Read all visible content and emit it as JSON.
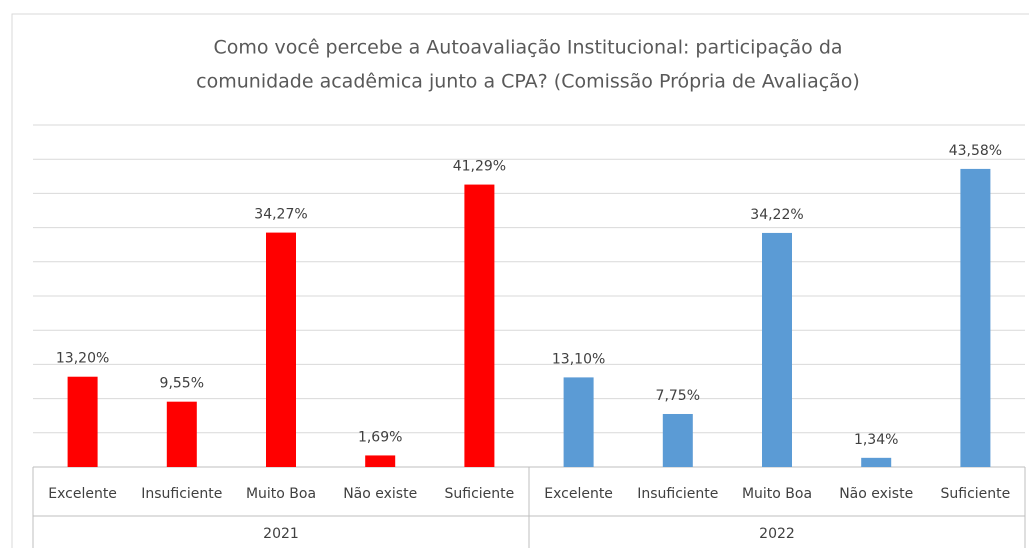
{
  "chart_data": {
    "type": "bar",
    "title": [
      "Como você percebe a Autoavaliação Institucional: participação da",
      "comunidade acadêmica junto a CPA? (Comissão Própria de Avaliação)"
    ],
    "groups": [
      {
        "label": "2021",
        "color": "#ff0000",
        "categories": [
          "Excelente",
          "Insuficiente",
          "Muito Boa",
          "Não existe",
          "Suficiente"
        ],
        "values": [
          13.2,
          9.55,
          34.27,
          1.69,
          41.29
        ],
        "value_labels": [
          "13,20%",
          "9,55%",
          "34,27%",
          "1,69%",
          "41,29%"
        ]
      },
      {
        "label": "2022",
        "color": "#5b9bd5",
        "categories": [
          "Excelente",
          "Insuficiente",
          "Muito Boa",
          "Não existe",
          "Suficiente"
        ],
        "values": [
          13.1,
          7.75,
          34.22,
          1.34,
          43.58
        ],
        "value_labels": [
          "13,10%",
          "7,75%",
          "34,22%",
          "1,34%",
          "43,58%"
        ]
      }
    ],
    "ylim": [
      0,
      50
    ],
    "yticks": [
      0,
      5,
      10,
      15,
      20,
      25,
      30,
      35,
      40,
      45,
      50
    ],
    "grid": true
  }
}
